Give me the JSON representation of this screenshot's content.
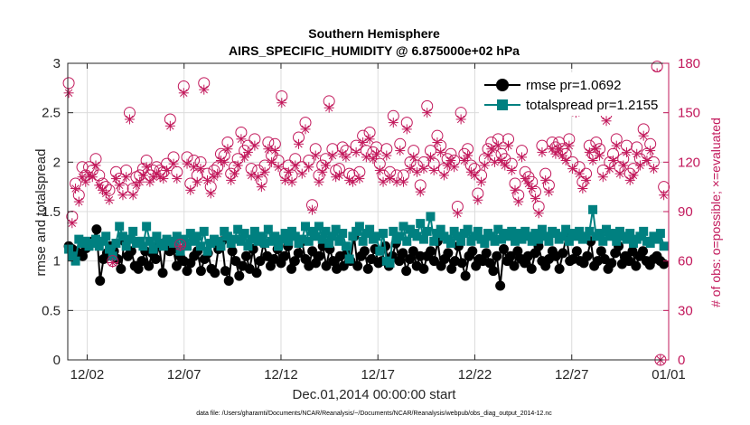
{
  "chart_data": {
    "type": "line",
    "title": "Southern Hemisphere",
    "subtitle": "AIRS_SPECIFIC_HUMIDITY @ 6.875000e+02 hPa",
    "xlabel": "Dec.01,2014 00:00:00 start",
    "ylabel": "rmse and totalspread",
    "y2label": "# of obs: o=possible; ×=evaluated",
    "footnote": "data file: /Users/gharamti/Documents/NCAR/Reanalysis/~/Documents/NCAR/Reanalysis/webpub/obs_diag_output_2014-12.nc",
    "xlim": [
      0,
      31
    ],
    "ylim": [
      0,
      3
    ],
    "y2lim": [
      0,
      180
    ],
    "x_ticks": [
      1,
      6,
      11,
      16,
      21,
      26,
      31
    ],
    "x_tick_labels": [
      "12/02",
      "12/07",
      "12/12",
      "12/17",
      "12/22",
      "12/27",
      "01/01"
    ],
    "y_ticks": [
      0,
      0.5,
      1,
      1.5,
      2,
      2.5,
      3
    ],
    "y_tick_labels": [
      "0",
      "0.5",
      "1",
      "1.5",
      "2",
      "2.5",
      "3"
    ],
    "y2_ticks": [
      0,
      30,
      60,
      90,
      120,
      150,
      180
    ],
    "y2_tick_labels": [
      "0",
      "30",
      "60",
      "90",
      "120",
      "150",
      "180"
    ],
    "grid": true,
    "legend_position": "top-right",
    "colors": {
      "rmse": "#000000",
      "totalspread": "#008080",
      "obs": "#c2185b"
    },
    "series": [
      {
        "name": "rmse pr=1.0692",
        "key": "rmse",
        "marker": "circle",
        "values": [
          1.15,
          1.12,
          1.1,
          1.08,
          1.05,
          1.13,
          1.18,
          1.2,
          1.32,
          0.8,
          1.02,
          1.08,
          1.15,
          1.1,
          1.02,
          0.92,
          1.2,
          1.05,
          1.1,
          0.95,
          0.92,
          1.0,
          1.1,
          0.95,
          1.08,
          1.02,
          1.15,
          0.88,
          1.2,
          1.1,
          1.12,
          0.95,
          1.05,
          1.0,
          0.9,
          0.98,
          1.05,
          1.1,
          0.9,
          1.02,
          1.08,
          0.92,
          0.88,
          1.12,
          1.2,
          0.9,
          0.8,
          1.1,
          1.0,
          0.85,
          0.95,
          1.05,
          0.92,
          1.12,
          0.88,
          1.0,
          1.18,
          1.05,
          0.95,
          1.02,
          1.12,
          0.98,
          1.05,
          1.15,
          0.92,
          1.0,
          1.08,
          1.2,
          1.02,
          0.95,
          1.1,
          0.98,
          1.05,
          1.15,
          0.95,
          1.12,
          1.0,
          0.92,
          1.05,
          0.95,
          1.08,
          1.0,
          1.25,
          0.95,
          1.05,
          1.1,
          0.92,
          1.02,
          1.12,
          0.98,
          1.0,
          1.15,
          0.95,
          1.05,
          1.18,
          1.0,
          1.08,
          0.9,
          1.02,
          1.1,
          0.95,
          1.05,
          0.92,
          1.05,
          1.1,
          1.0,
          1.2,
          0.95,
          1.02,
          1.08,
          0.92,
          1.0,
          1.15,
          0.98,
          0.85,
          1.05,
          1.1,
          0.95,
          1.02,
          1.0,
          1.08,
          0.98,
          0.9,
          1.05,
          0.75,
          1.12,
          1.0,
          1.05,
          0.95,
          1.1,
          1.02,
          0.98,
          1.05,
          0.92,
          1.08,
          1.15,
          1.0,
          0.95,
          1.02,
          1.1,
          1.05,
          0.92,
          1.08,
          1.25,
          1.0,
          1.02,
          1.1,
          1.0,
          0.98,
          1.05,
          1.2,
          0.95,
          1.0,
          1.1,
          1.02,
          0.92,
          0.98,
          1.08,
          1.15,
          0.97,
          1.05,
          1.0,
          1.1,
          0.95,
          1.05,
          1.1,
          1.0,
          0.96,
          1.02,
          1.05,
          1.0,
          0.97
        ]
      },
      {
        "name": "totalspread pr=1.2155",
        "key": "totalspread",
        "marker": "square",
        "values": [
          1.12,
          1.05,
          1.0,
          1.22,
          1.18,
          1.2,
          1.15,
          1.18,
          1.22,
          1.15,
          1.2,
          1.25,
          1.12,
          1.05,
          1.18,
          1.35,
          1.25,
          1.15,
          1.22,
          1.3,
          1.18,
          1.2,
          1.15,
          1.35,
          1.2,
          1.12,
          1.25,
          1.18,
          1.15,
          1.22,
          1.2,
          1.18,
          1.25,
          1.1,
          1.22,
          1.15,
          1.28,
          1.2,
          1.25,
          1.15,
          1.3,
          1.1,
          1.18,
          1.22,
          1.2,
          1.15,
          1.3,
          1.25,
          1.18,
          1.22,
          1.32,
          1.2,
          1.28,
          1.15,
          1.22,
          1.3,
          1.2,
          1.25,
          1.18,
          1.32,
          1.2,
          1.25,
          1.15,
          1.22,
          1.28,
          1.2,
          1.3,
          1.25,
          1.18,
          1.22,
          1.35,
          1.2,
          1.3,
          1.25,
          1.35,
          1.22,
          1.3,
          1.18,
          1.25,
          1.32,
          1.2,
          1.28,
          1.15,
          1.02,
          1.25,
          1.3,
          1.35,
          1.2,
          1.28,
          1.32,
          1.22,
          1.25,
          1.1,
          1.28,
          1.0,
          0.98,
          1.3,
          1.22,
          1.25,
          1.35,
          1.2,
          1.32,
          1.28,
          1.25,
          1.38,
          1.22,
          1.3,
          1.45,
          1.2,
          1.28,
          1.32,
          1.25,
          1.22,
          1.18,
          1.3,
          1.25,
          1.2,
          1.28,
          1.32,
          1.2,
          1.25,
          1.3,
          1.22,
          1.18,
          1.28,
          1.25,
          1.2,
          1.32,
          1.22,
          1.28,
          1.25,
          1.3,
          1.2,
          1.28,
          1.22,
          1.3,
          1.25,
          1.2,
          1.28,
          1.22,
          1.32,
          1.25,
          1.2,
          1.3,
          1.28,
          1.22,
          1.25,
          1.32,
          1.2,
          1.28,
          1.25,
          1.3,
          1.22,
          1.25,
          1.3,
          1.52,
          1.25,
          1.28,
          1.2,
          1.32,
          1.25,
          1.28,
          1.2,
          1.3,
          1.25,
          1.22,
          1.28,
          1.18,
          1.22,
          1.25,
          1.3,
          1.2,
          1.18,
          1.25,
          1.22,
          1.28,
          1.15
        ]
      },
      {
        "name": "possible",
        "key": "possible",
        "marker": "open-circle",
        "axis": "right",
        "values": [
          168,
          87,
          107,
          100,
          117,
          112,
          117,
          115,
          122,
          112,
          107,
          105,
          103,
          60,
          114,
          110,
          104,
          115,
          150,
          104,
          111,
          112,
          116,
          121,
          112,
          115,
          117,
          115,
          114,
          119,
          146,
          123,
          114,
          70,
          166,
          123,
          107,
          121,
          112,
          120,
          168,
          113,
          105,
          115,
          117,
          125,
          124,
          132,
          113,
          117,
          122,
          138,
          127,
          130,
          116,
          134,
          115,
          109,
          118,
          132,
          124,
          131,
          121,
          160,
          113,
          118,
          112,
          122,
          135,
          117,
          144,
          121,
          94,
          128,
          112,
          118,
          122,
          157,
          128,
          115,
          116,
          129,
          127,
          113,
          112,
          130,
          114,
          136,
          127,
          138,
          126,
          129,
          119,
          112,
          128,
          114,
          148,
          112,
          131,
          112,
          144,
          120,
          127,
          118,
          106,
          120,
          154,
          127,
          119,
          136,
          130,
          116,
          122,
          125,
          121,
          93,
          150,
          125,
          128,
          118,
          116,
          101,
          112,
          122,
          128,
          132,
          124,
          134,
          125,
          122,
          134,
          119,
          107,
          100,
          127,
          114,
          111,
          108,
          102,
          93,
          130,
          113,
          106,
          132,
          129,
          132,
          128,
          125,
          134,
          120,
          154,
          117,
          108,
          113,
          130,
          125,
          132,
          128,
          115,
          149,
          120,
          125,
          134,
          117,
          122,
          130,
          113,
          116,
          129,
          122,
          140,
          125,
          131,
          120,
          178,
          0,
          105
        ]
      },
      {
        "name": "evaluated",
        "key": "evaluated",
        "marker": "asterisk",
        "axis": "right",
        "values": [
          162,
          83,
          104,
          96,
          111,
          108,
          112,
          111,
          118,
          106,
          103,
          101,
          97,
          59,
          110,
          106,
          100,
          111,
          146,
          100,
          106,
          108,
          112,
          117,
          108,
          111,
          113,
          111,
          110,
          115,
          142,
          119,
          110,
          69,
          162,
          119,
          103,
          117,
          108,
          116,
          164,
          109,
          101,
          111,
          113,
          121,
          120,
          128,
          109,
          113,
          118,
          134,
          123,
          126,
          112,
          130,
          111,
          105,
          114,
          128,
          120,
          127,
          117,
          156,
          109,
          114,
          108,
          118,
          131,
          113,
          140,
          117,
          91,
          124,
          108,
          114,
          118,
          153,
          124,
          111,
          112,
          125,
          123,
          109,
          108,
          126,
          110,
          132,
          123,
          134,
          122,
          125,
          115,
          108,
          124,
          110,
          144,
          108,
          127,
          108,
          140,
          116,
          123,
          114,
          102,
          116,
          150,
          123,
          115,
          132,
          126,
          112,
          118,
          121,
          117,
          89,
          146,
          121,
          124,
          114,
          112,
          97,
          108,
          118,
          124,
          128,
          120,
          130,
          121,
          118,
          130,
          115,
          103,
          96,
          123,
          110,
          107,
          104,
          98,
          89,
          126,
          109,
          102,
          128,
          125,
          128,
          124,
          121,
          130,
          116,
          150,
          113,
          104,
          109,
          126,
          121,
          128,
          124,
          111,
          145,
          116,
          121,
          130,
          113,
          118,
          126,
          109,
          112,
          125,
          118,
          136,
          121,
          127,
          116,
          174,
          0,
          100
        ]
      }
    ]
  }
}
